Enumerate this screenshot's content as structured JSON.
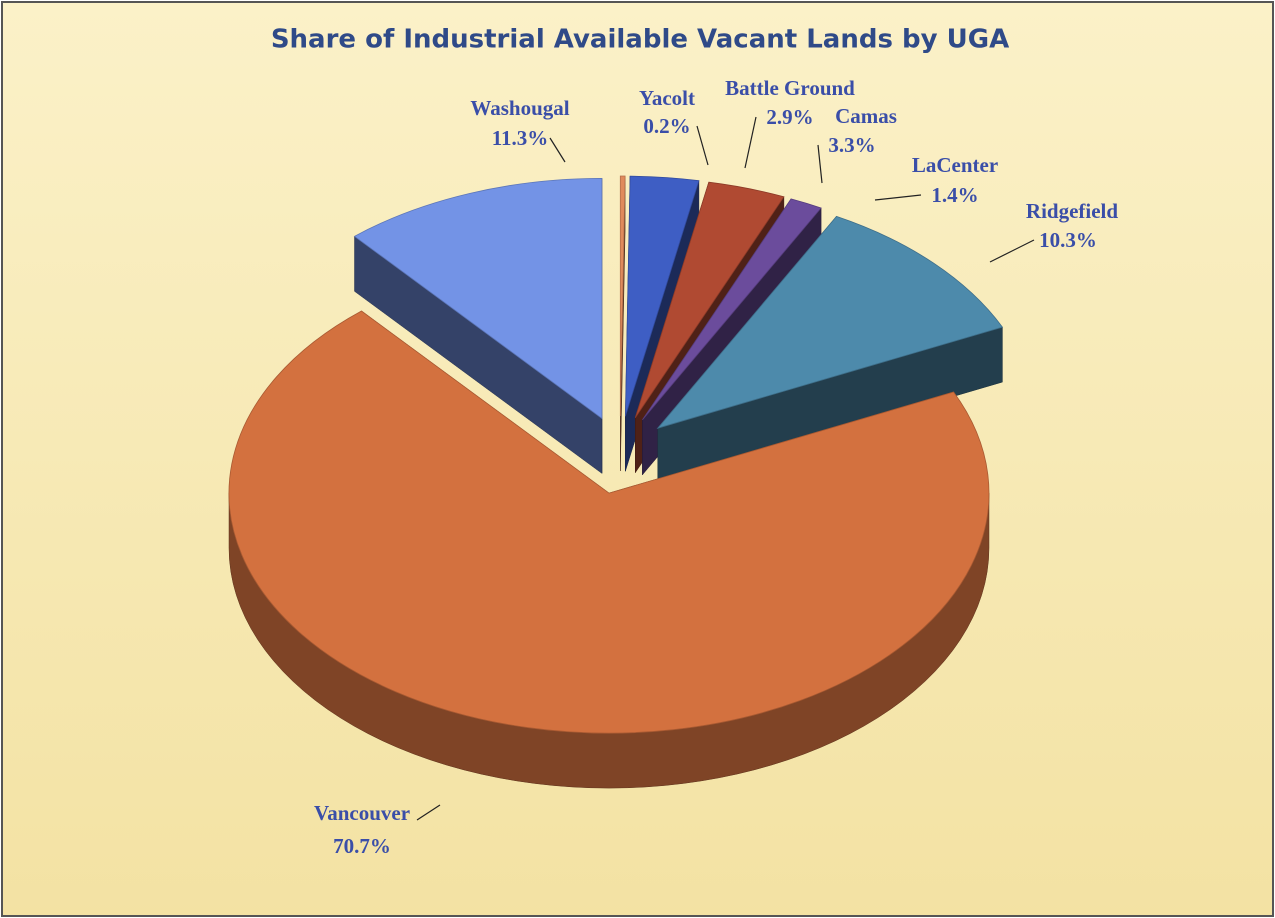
{
  "chart_data": {
    "type": "pie",
    "title": "Share of Industrial Available Vacant Lands by UGA",
    "categories": [
      "Washougal",
      "Yacolt",
      "Battle Ground",
      "Camas",
      "LaCenter",
      "Ridgefield",
      "Vancouver"
    ],
    "values": [
      11.3,
      0.2,
      2.9,
      3.3,
      1.4,
      10.3,
      70.7
    ],
    "value_labels": [
      "11.3%",
      "0.2%",
      "2.9%",
      "3.3%",
      "1.4%",
      "10.3%",
      "70.7%"
    ],
    "colors": [
      "#7393e6",
      "#e08a5c",
      "#3e5ec4",
      "#b04a32",
      "#6b4c9c",
      "#4d8aab",
      "#d3713f"
    ]
  }
}
